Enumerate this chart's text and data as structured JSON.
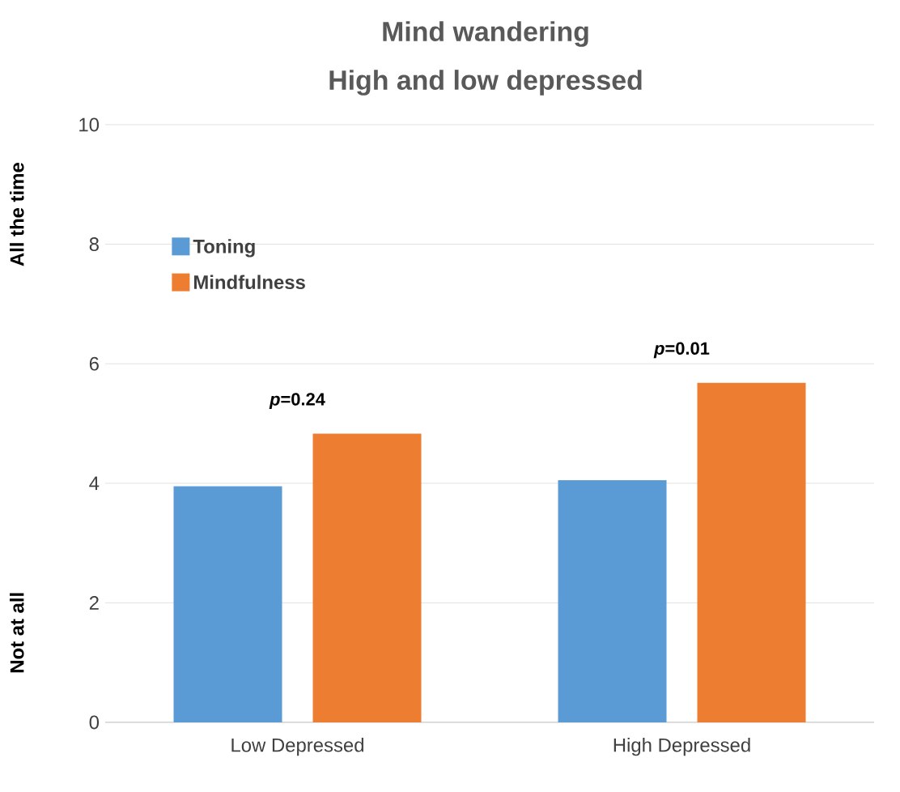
{
  "chart_data": {
    "type": "bar",
    "title": "Mind wandering",
    "subtitle": "High and low depressed",
    "categories": [
      "Low Depressed",
      "High Depressed"
    ],
    "series": [
      {
        "name": "Toning",
        "color": "#5b9bd5",
        "values": [
          3.95,
          4.05
        ]
      },
      {
        "name": "Mindfulness",
        "color": "#ed7d31",
        "values": [
          4.83,
          5.68
        ]
      }
    ],
    "ylim": [
      0,
      10
    ],
    "yticks": [
      0,
      2,
      4,
      6,
      8,
      10
    ],
    "grid": "y",
    "legend": "top left",
    "annotations": [
      "All the time",
      "Not at all",
      "*p*=0.24",
      "*p*=0.01"
    ]
  }
}
